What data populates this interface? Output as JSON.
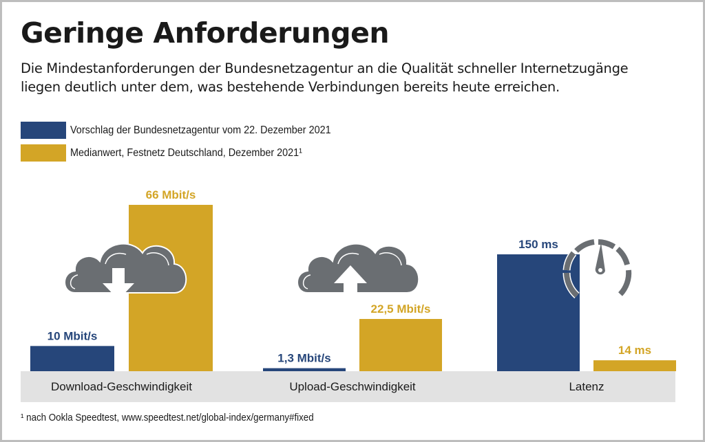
{
  "header": {
    "title": "Geringe Anforderungen",
    "subtitle_line1": "Die Mindestanforderungen der Bundesnetzagentur an die Qualität schneller Internetzugänge",
    "subtitle_line2": "liegen deutlich unter dem, was bestehende Verbindungen bereits heute erreichen."
  },
  "colors": {
    "proposal": "#26467a",
    "median": "#d3a526",
    "band": "#e2e2e2",
    "icon": "#6a6e72"
  },
  "footnote": "¹ nach Ookla Speedtest, www.speedtest.net/global-index/germany#fixed",
  "chart_data": {
    "type": "bar",
    "title": "Geringe Anforderungen",
    "xlabel": "",
    "ylabel": "",
    "legend": {
      "placement": "top-left",
      "entries": [
        {
          "name": "Vorschlag der Bundesnetzagentur vom 22. Dezember 2021",
          "color": "#26467a"
        },
        {
          "name": "Medianwert, Festnetz Deutschland, Dezember 2021¹",
          "color": "#d3a526"
        }
      ]
    },
    "categories": [
      "Download-Geschwindigkeit",
      "Upload-Geschwindigkeit",
      "Latenz"
    ],
    "icons": [
      "cloud-download-icon",
      "cloud-upload-icon",
      "speedometer-icon"
    ],
    "series": [
      {
        "name": "Vorschlag der Bundesnetzagentur vom 22. Dezember 2021",
        "values": [
          10,
          1.3,
          150
        ],
        "labels": [
          "10 Mbit/s",
          "1,3 Mbit/s",
          "150 ms"
        ]
      },
      {
        "name": "Medianwert, Festnetz Deutschland, Dezember 2021¹",
        "values": [
          66,
          22.5,
          14
        ],
        "labels": [
          "66 Mbit/s",
          "22,5 Mbit/s",
          "14 ms"
        ]
      }
    ],
    "units": [
      "Mbit/s",
      "Mbit/s",
      "ms"
    ],
    "grid": false
  }
}
